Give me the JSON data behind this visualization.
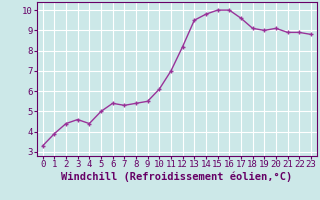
{
  "x": [
    0,
    1,
    2,
    3,
    4,
    5,
    6,
    7,
    8,
    9,
    10,
    11,
    12,
    13,
    14,
    15,
    16,
    17,
    18,
    19,
    20,
    21,
    22,
    23
  ],
  "y": [
    3.3,
    3.9,
    4.4,
    4.6,
    4.4,
    5.0,
    5.4,
    5.3,
    5.4,
    5.5,
    6.1,
    7.0,
    8.2,
    9.5,
    9.8,
    10.0,
    10.0,
    9.6,
    9.1,
    9.0,
    9.1,
    8.9,
    8.9,
    8.8
  ],
  "line_color": "#993399",
  "marker": "+",
  "bg_color": "#cce8e8",
  "grid_color": "#ffffff",
  "xlabel": "Windchill (Refroidissement éolien,°C)",
  "ylabel_ticks": [
    3,
    4,
    5,
    6,
    7,
    8,
    9,
    10
  ],
  "xlim": [
    -0.5,
    23.5
  ],
  "ylim": [
    2.8,
    10.4
  ],
  "tick_fontsize": 6.5,
  "label_fontsize": 7.5,
  "axis_color": "#660066"
}
